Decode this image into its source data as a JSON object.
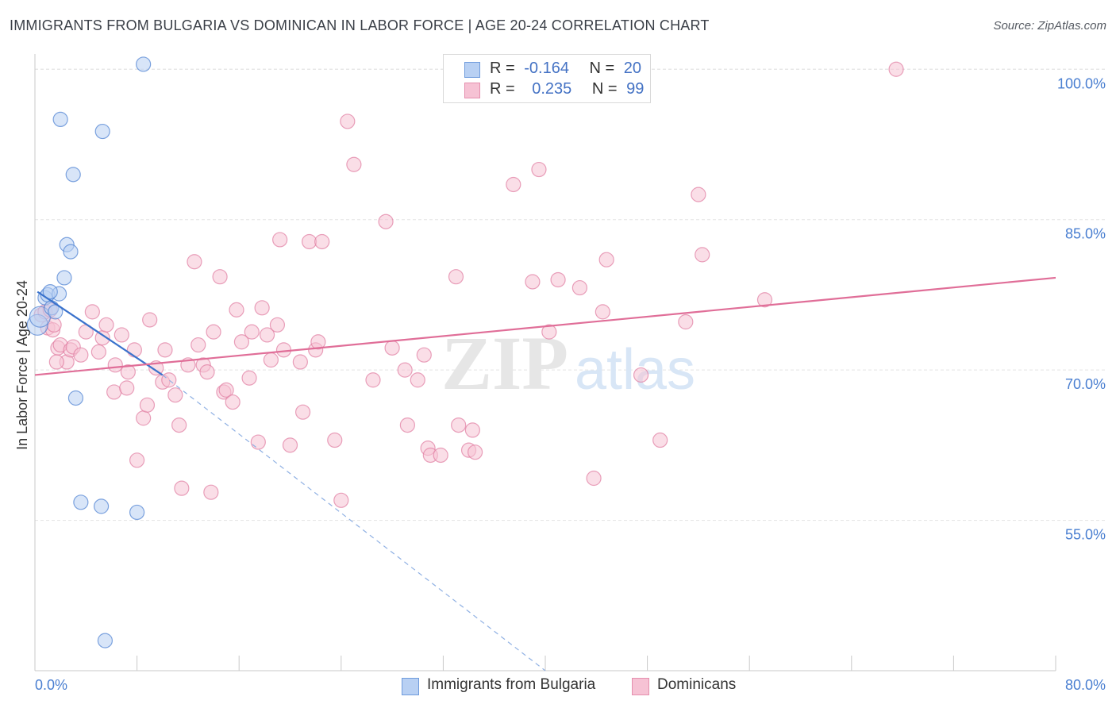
{
  "chart_data": {
    "type": "scatter",
    "title": "IMMIGRANTS FROM BULGARIA VS DOMINICAN IN LABOR FORCE | AGE 20-24 CORRELATION CHART",
    "source": "Source: ZipAtlas.com",
    "xlabel": "",
    "ylabel": "In Labor Force | Age 20-24",
    "xlim": [
      0,
      80
    ],
    "ylim": [
      40,
      102
    ],
    "x_tick_labels": [
      "0.0%",
      "80.0%"
    ],
    "y_ticks": [
      55,
      70,
      85,
      100
    ],
    "y_tick_labels": [
      "55.0%",
      "70.0%",
      "85.0%",
      "100.0%"
    ],
    "grid": true,
    "legend_position": "top-center",
    "watermark": {
      "main": "ZIP",
      "sub": "atlas"
    },
    "stats": [
      {
        "r_label": "R =",
        "r_value": "-0.164",
        "n_label": "N =",
        "n_value": "20"
      },
      {
        "r_label": "R =",
        "r_value": "0.235",
        "n_label": "N =",
        "n_value": "99"
      }
    ],
    "series": [
      {
        "name": "Immigrants from Bulgaria",
        "color": "#4a7fd1",
        "fill": "#b8d0f3",
        "trend": {
          "x0": 0.2,
          "y0": 77.8,
          "x1": 10.0,
          "y1": 69.5,
          "dash_to_x": 40.0,
          "dash_to_y": 40.0
        },
        "points": [
          [
            0.2,
            74.5
          ],
          [
            0.4,
            75.3
          ],
          [
            0.8,
            77.2
          ],
          [
            1.0,
            77.5
          ],
          [
            1.3,
            76.2
          ],
          [
            1.6,
            75.8
          ],
          [
            1.9,
            77.6
          ],
          [
            2.3,
            79.2
          ],
          [
            2.5,
            82.5
          ],
          [
            2.8,
            81.8
          ],
          [
            3.0,
            89.5
          ],
          [
            3.2,
            67.2
          ],
          [
            3.6,
            56.8
          ],
          [
            5.2,
            56.4
          ],
          [
            5.3,
            93.8
          ],
          [
            8.0,
            55.8
          ],
          [
            8.5,
            100.5
          ],
          [
            2.0,
            95.0
          ],
          [
            5.5,
            43.0
          ],
          [
            1.2,
            77.8
          ]
        ]
      },
      {
        "name": "Dominicans",
        "color": "#e07aa0",
        "fill": "#f6c2d4",
        "trend": {
          "x0": 0,
          "y0": 69.5,
          "x1": 80,
          "y1": 79.2
        },
        "points": [
          [
            0.5,
            75.5
          ],
          [
            0.8,
            75.8
          ],
          [
            1.0,
            74.2
          ],
          [
            1.2,
            76.0
          ],
          [
            1.4,
            74.0
          ],
          [
            1.5,
            74.5
          ],
          [
            1.8,
            72.2
          ],
          [
            2.0,
            72.5
          ],
          [
            2.5,
            70.8
          ],
          [
            2.8,
            72.0
          ],
          [
            3.0,
            72.3
          ],
          [
            3.6,
            71.5
          ],
          [
            4.0,
            73.8
          ],
          [
            4.5,
            75.8
          ],
          [
            5.0,
            71.8
          ],
          [
            5.3,
            73.2
          ],
          [
            5.6,
            74.5
          ],
          [
            6.2,
            67.8
          ],
          [
            6.3,
            70.5
          ],
          [
            6.8,
            73.5
          ],
          [
            7.2,
            68.2
          ],
          [
            7.3,
            69.8
          ],
          [
            7.8,
            72.0
          ],
          [
            8.0,
            61.0
          ],
          [
            8.5,
            65.2
          ],
          [
            8.8,
            66.5
          ],
          [
            9.0,
            75.0
          ],
          [
            9.5,
            70.2
          ],
          [
            10.0,
            68.8
          ],
          [
            10.2,
            72.0
          ],
          [
            10.5,
            69.0
          ],
          [
            11.0,
            67.5
          ],
          [
            11.3,
            64.5
          ],
          [
            11.5,
            58.2
          ],
          [
            12.0,
            70.5
          ],
          [
            12.5,
            80.8
          ],
          [
            12.8,
            72.5
          ],
          [
            13.2,
            70.5
          ],
          [
            13.5,
            69.8
          ],
          [
            13.8,
            57.8
          ],
          [
            14.0,
            73.8
          ],
          [
            14.5,
            79.3
          ],
          [
            14.8,
            67.8
          ],
          [
            15.0,
            68.0
          ],
          [
            15.5,
            66.8
          ],
          [
            15.8,
            76.0
          ],
          [
            16.2,
            72.8
          ],
          [
            16.8,
            69.2
          ],
          [
            17.0,
            73.8
          ],
          [
            17.5,
            62.8
          ],
          [
            17.8,
            76.2
          ],
          [
            18.2,
            73.5
          ],
          [
            18.5,
            71.0
          ],
          [
            19.0,
            74.5
          ],
          [
            19.2,
            83.0
          ],
          [
            19.5,
            72.0
          ],
          [
            20.0,
            62.5
          ],
          [
            20.8,
            70.8
          ],
          [
            21.0,
            65.8
          ],
          [
            21.5,
            82.8
          ],
          [
            22.0,
            72.0
          ],
          [
            22.2,
            72.8
          ],
          [
            22.5,
            82.8
          ],
          [
            23.5,
            63.0
          ],
          [
            24.0,
            57.0
          ],
          [
            24.5,
            94.8
          ],
          [
            25.0,
            90.5
          ],
          [
            26.5,
            69.0
          ],
          [
            27.5,
            84.8
          ],
          [
            28.0,
            72.2
          ],
          [
            29.0,
            70.0
          ],
          [
            29.2,
            64.5
          ],
          [
            30.0,
            69.0
          ],
          [
            30.5,
            71.5
          ],
          [
            30.8,
            62.2
          ],
          [
            31.0,
            61.5
          ],
          [
            31.8,
            61.5
          ],
          [
            33.0,
            79.3
          ],
          [
            33.2,
            64.5
          ],
          [
            34.0,
            62.0
          ],
          [
            34.5,
            61.8
          ],
          [
            34.3,
            64.0
          ],
          [
            37.5,
            88.5
          ],
          [
            39.0,
            78.8
          ],
          [
            39.5,
            90.0
          ],
          [
            40.3,
            73.8
          ],
          [
            41.0,
            79.0
          ],
          [
            42.7,
            78.2
          ],
          [
            43.8,
            59.2
          ],
          [
            44.5,
            75.8
          ],
          [
            44.8,
            81.0
          ],
          [
            47.5,
            69.5
          ],
          [
            49.0,
            63.0
          ],
          [
            51.0,
            74.8
          ],
          [
            52.0,
            87.5
          ],
          [
            52.3,
            81.5
          ],
          [
            57.2,
            77.0
          ],
          [
            67.5,
            100.0
          ],
          [
            1.7,
            70.8
          ]
        ]
      }
    ]
  },
  "legend": {
    "bottom": [
      "Immigrants from Bulgaria",
      "Dominicans"
    ]
  }
}
